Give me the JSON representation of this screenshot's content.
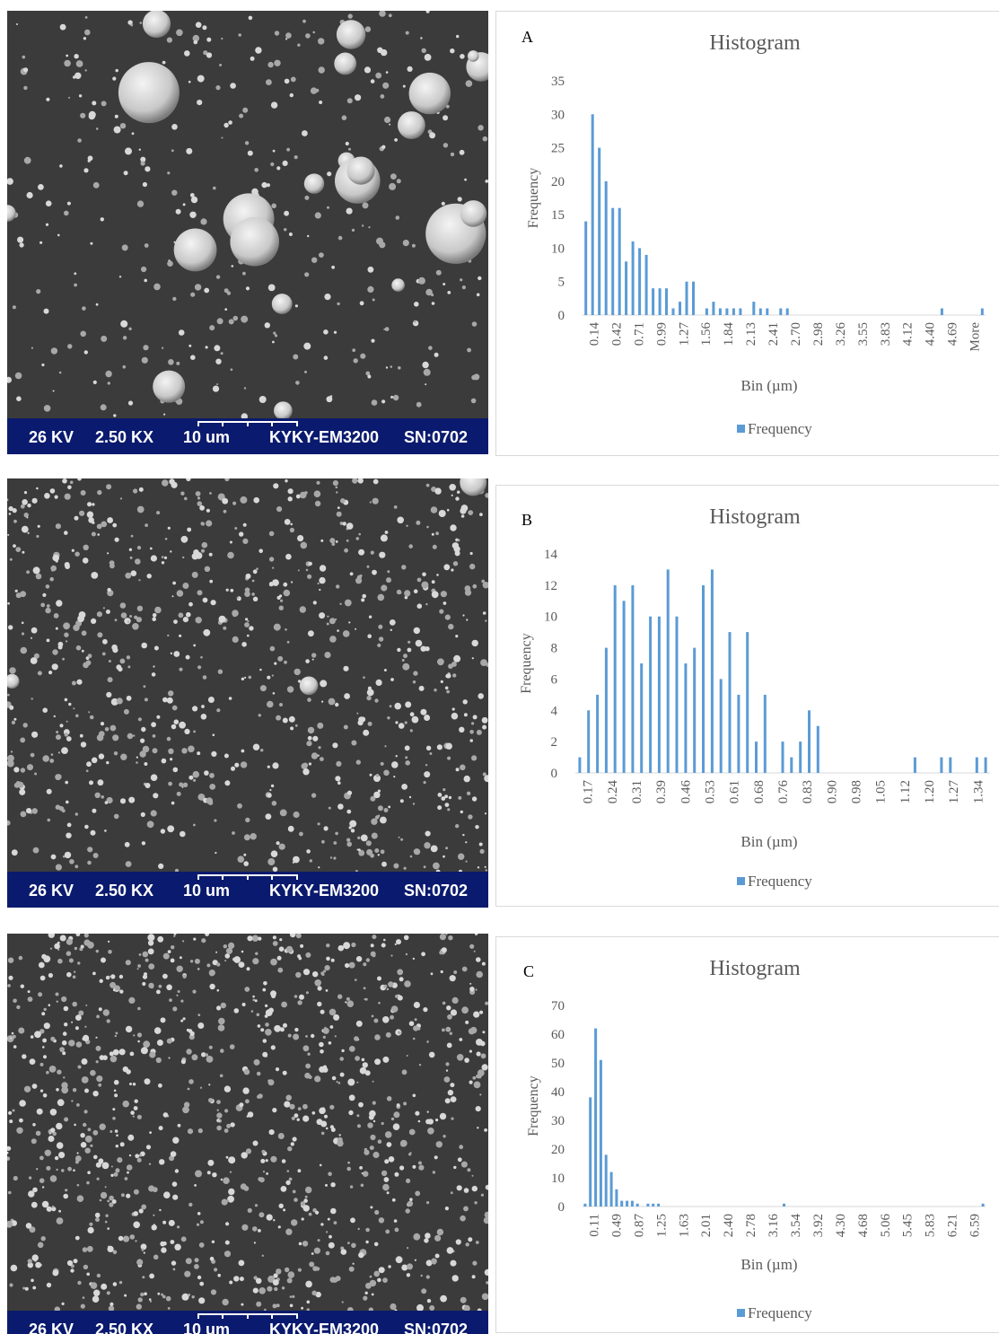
{
  "sem_bar": {
    "voltage": "26 KV",
    "magnification": "2.50 KX",
    "scale": "10 um",
    "instrument": "KYKY-EM3200",
    "serial": "SN:0702"
  },
  "colors": {
    "bar": "#5b9bd5",
    "sem_bar": "#0a1a6e",
    "sem_bg": "#3a3a3a"
  },
  "chart_data": [
    {
      "type": "bar",
      "panel_label": "A",
      "title": "Histogram",
      "xlabel": "Bin (µm)",
      "ylabel": "Frequency",
      "legend": [
        "Frequency"
      ],
      "legend_position": "bottom",
      "grid": false,
      "ylim": [
        0,
        35
      ],
      "yticks": [
        0,
        5,
        10,
        15,
        20,
        25,
        30,
        35
      ],
      "tick_labels": [
        "0.14",
        "0.42",
        "0.71",
        "0.99",
        "1.27",
        "1.56",
        "1.84",
        "2.13",
        "2.41",
        "2.70",
        "2.98",
        "3.26",
        "3.55",
        "3.83",
        "4.12",
        "4.40",
        "4.69",
        "More"
      ],
      "series": [
        {
          "name": "Frequency",
          "values": [
            14,
            30,
            25,
            20,
            16,
            16,
            8,
            11,
            10,
            9,
            4,
            4,
            4,
            1,
            2,
            5,
            5,
            0,
            1,
            2,
            1,
            1,
            1,
            1,
            0,
            2,
            1,
            1,
            0,
            1,
            1,
            0,
            0,
            0,
            0,
            0,
            0,
            0,
            0,
            0,
            0,
            0,
            0,
            0,
            0,
            0,
            0,
            0,
            0,
            0,
            0,
            0,
            0,
            1,
            0,
            0,
            0,
            0,
            0,
            1
          ]
        }
      ]
    },
    {
      "type": "bar",
      "panel_label": "B",
      "title": "Histogram",
      "xlabel": "Bin (µm)",
      "ylabel": "Frequency",
      "legend": [
        "Frequency"
      ],
      "legend_position": "bottom",
      "grid": false,
      "ylim": [
        0,
        14
      ],
      "yticks": [
        0,
        2,
        4,
        6,
        8,
        10,
        12,
        14
      ],
      "tick_labels": [
        "0.17",
        "0.24",
        "0.31",
        "0.39",
        "0.46",
        "0.53",
        "0.61",
        "0.68",
        "0.76",
        "0.83",
        "0.90",
        "0.98",
        "1.05",
        "1.12",
        "1.20",
        "1.27",
        "1.34"
      ],
      "series": [
        {
          "name": "Frequency",
          "values": [
            1,
            4,
            5,
            8,
            12,
            11,
            12,
            7,
            10,
            10,
            13,
            10,
            7,
            8,
            12,
            13,
            6,
            9,
            5,
            9,
            2,
            5,
            0,
            2,
            1,
            2,
            4,
            3,
            0,
            0,
            0,
            0,
            0,
            0,
            0,
            0,
            0,
            0,
            1,
            0,
            0,
            1,
            1,
            0,
            0,
            1,
            1
          ]
        }
      ]
    },
    {
      "type": "bar",
      "panel_label": "C",
      "title": "Histogram",
      "xlabel": "Bin (µm)",
      "ylabel": "Frequency",
      "legend": [
        "Frequency"
      ],
      "legend_position": "bottom",
      "grid": false,
      "ylim": [
        0,
        70
      ],
      "yticks": [
        0,
        10,
        20,
        30,
        40,
        50,
        60,
        70
      ],
      "tick_labels": [
        "0.11",
        "0.49",
        "0.87",
        "1.25",
        "1.63",
        "2.01",
        "2.40",
        "2.78",
        "3.16",
        "3.54",
        "3.92",
        "4.30",
        "4.68",
        "5.06",
        "5.45",
        "5.83",
        "6.21",
        "6.59"
      ],
      "series": [
        {
          "name": "Frequency",
          "values": [
            1,
            38,
            62,
            51,
            18,
            12,
            6,
            2,
            2,
            2,
            1,
            0,
            1,
            1,
            1,
            0,
            0,
            0,
            0,
            0,
            0,
            0,
            0,
            0,
            0,
            0,
            0,
            0,
            0,
            0,
            0,
            0,
            0,
            0,
            0,
            0,
            0,
            0,
            1,
            0,
            0,
            0,
            0,
            0,
            0,
            0,
            0,
            0,
            0,
            0,
            0,
            0,
            0,
            0,
            0,
            0,
            0,
            0,
            0,
            0,
            0,
            0,
            0,
            0,
            0,
            0,
            0,
            0,
            0,
            0,
            0,
            0,
            0,
            0,
            0,
            0,
            1
          ]
        }
      ]
    }
  ]
}
